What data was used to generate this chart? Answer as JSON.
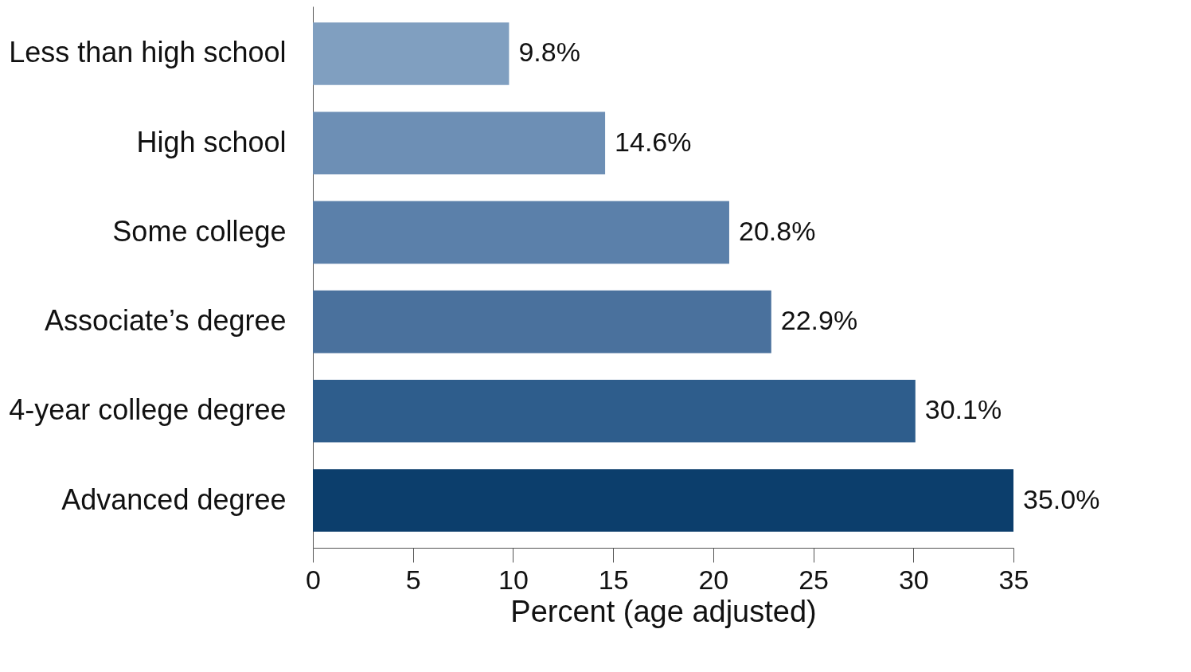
{
  "chart_data": {
    "type": "bar",
    "orientation": "horizontal",
    "xlabel": "Percent (age adjusted)",
    "categories": [
      "Less than high school",
      "High school",
      "Some college",
      "Associate’s degree",
      "4-year college degree",
      "Advanced degree"
    ],
    "values": [
      9.8,
      14.6,
      20.8,
      22.9,
      30.1,
      35.0
    ],
    "colors": [
      "#809fc0",
      "#6d8fb5",
      "#5b80aa",
      "#4a719d",
      "#2e5d8c",
      "#0c3e6c"
    ],
    "value_labels": [
      "9.8%",
      "14.6%",
      "20.8%",
      "22.9%",
      "30.1%",
      "35.0%"
    ],
    "xlim": [
      0,
      35
    ],
    "xticks": [
      0,
      5,
      10,
      15,
      20,
      25,
      30,
      35
    ],
    "grid": false,
    "legend": false
  }
}
